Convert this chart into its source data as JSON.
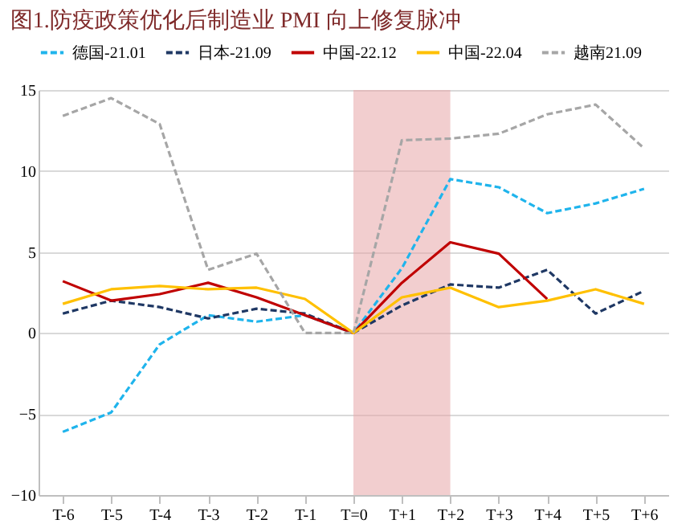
{
  "chart_data": {
    "type": "line",
    "title": "图1.防疫政策优化后制造业 PMI 向上修复脉冲",
    "categories": [
      "T-6",
      "T-5",
      "T-4",
      "T-3",
      "T-2",
      "T-1",
      "T=0",
      "T+1",
      "T+2",
      "T+3",
      "T+4",
      "T+5",
      "T+6"
    ],
    "series": [
      {
        "name": "德国-21.01",
        "color": "#1fb4ec",
        "line_style": "dashed",
        "values": [
          -6.1,
          -4.9,
          -0.7,
          1.1,
          0.7,
          1.1,
          0,
          4.0,
          9.5,
          9.0,
          7.4,
          8.0,
          8.9
        ]
      },
      {
        "name": "日本-21.09",
        "color": "#1f3864",
        "line_style": "dashed",
        "values": [
          1.2,
          2.0,
          1.6,
          0.9,
          1.5,
          1.2,
          0,
          1.7,
          3.0,
          2.8,
          3.9,
          1.2,
          2.6
        ]
      },
      {
        "name": "中国-22.12",
        "color": "#c00000",
        "line_style": "solid",
        "values": [
          3.2,
          2.0,
          2.4,
          3.1,
          2.2,
          1.1,
          0,
          3.1,
          5.6,
          4.9,
          2.1,
          null,
          null
        ]
      },
      {
        "name": "中国-22.04",
        "color": "#ffc000",
        "line_style": "solid",
        "values": [
          1.8,
          2.7,
          2.9,
          2.7,
          2.8,
          2.1,
          0,
          2.2,
          2.8,
          1.6,
          2.0,
          2.7,
          1.8
        ]
      },
      {
        "name": "越南21.09",
        "color": "#a6a6a6",
        "line_style": "dashed",
        "values": [
          13.4,
          14.5,
          12.9,
          3.9,
          4.9,
          0,
          0,
          11.9,
          12.0,
          12.3,
          13.5,
          14.1,
          11.4
        ]
      }
    ],
    "ylim": [
      -10,
      15
    ],
    "yticks": [
      -10,
      -5,
      0,
      5,
      10,
      15
    ],
    "grid": "y",
    "legend": "top",
    "bands": [
      {
        "axis": "x",
        "from": "T=0",
        "to": "T+2",
        "color": "#e8a5a8"
      }
    ]
  }
}
